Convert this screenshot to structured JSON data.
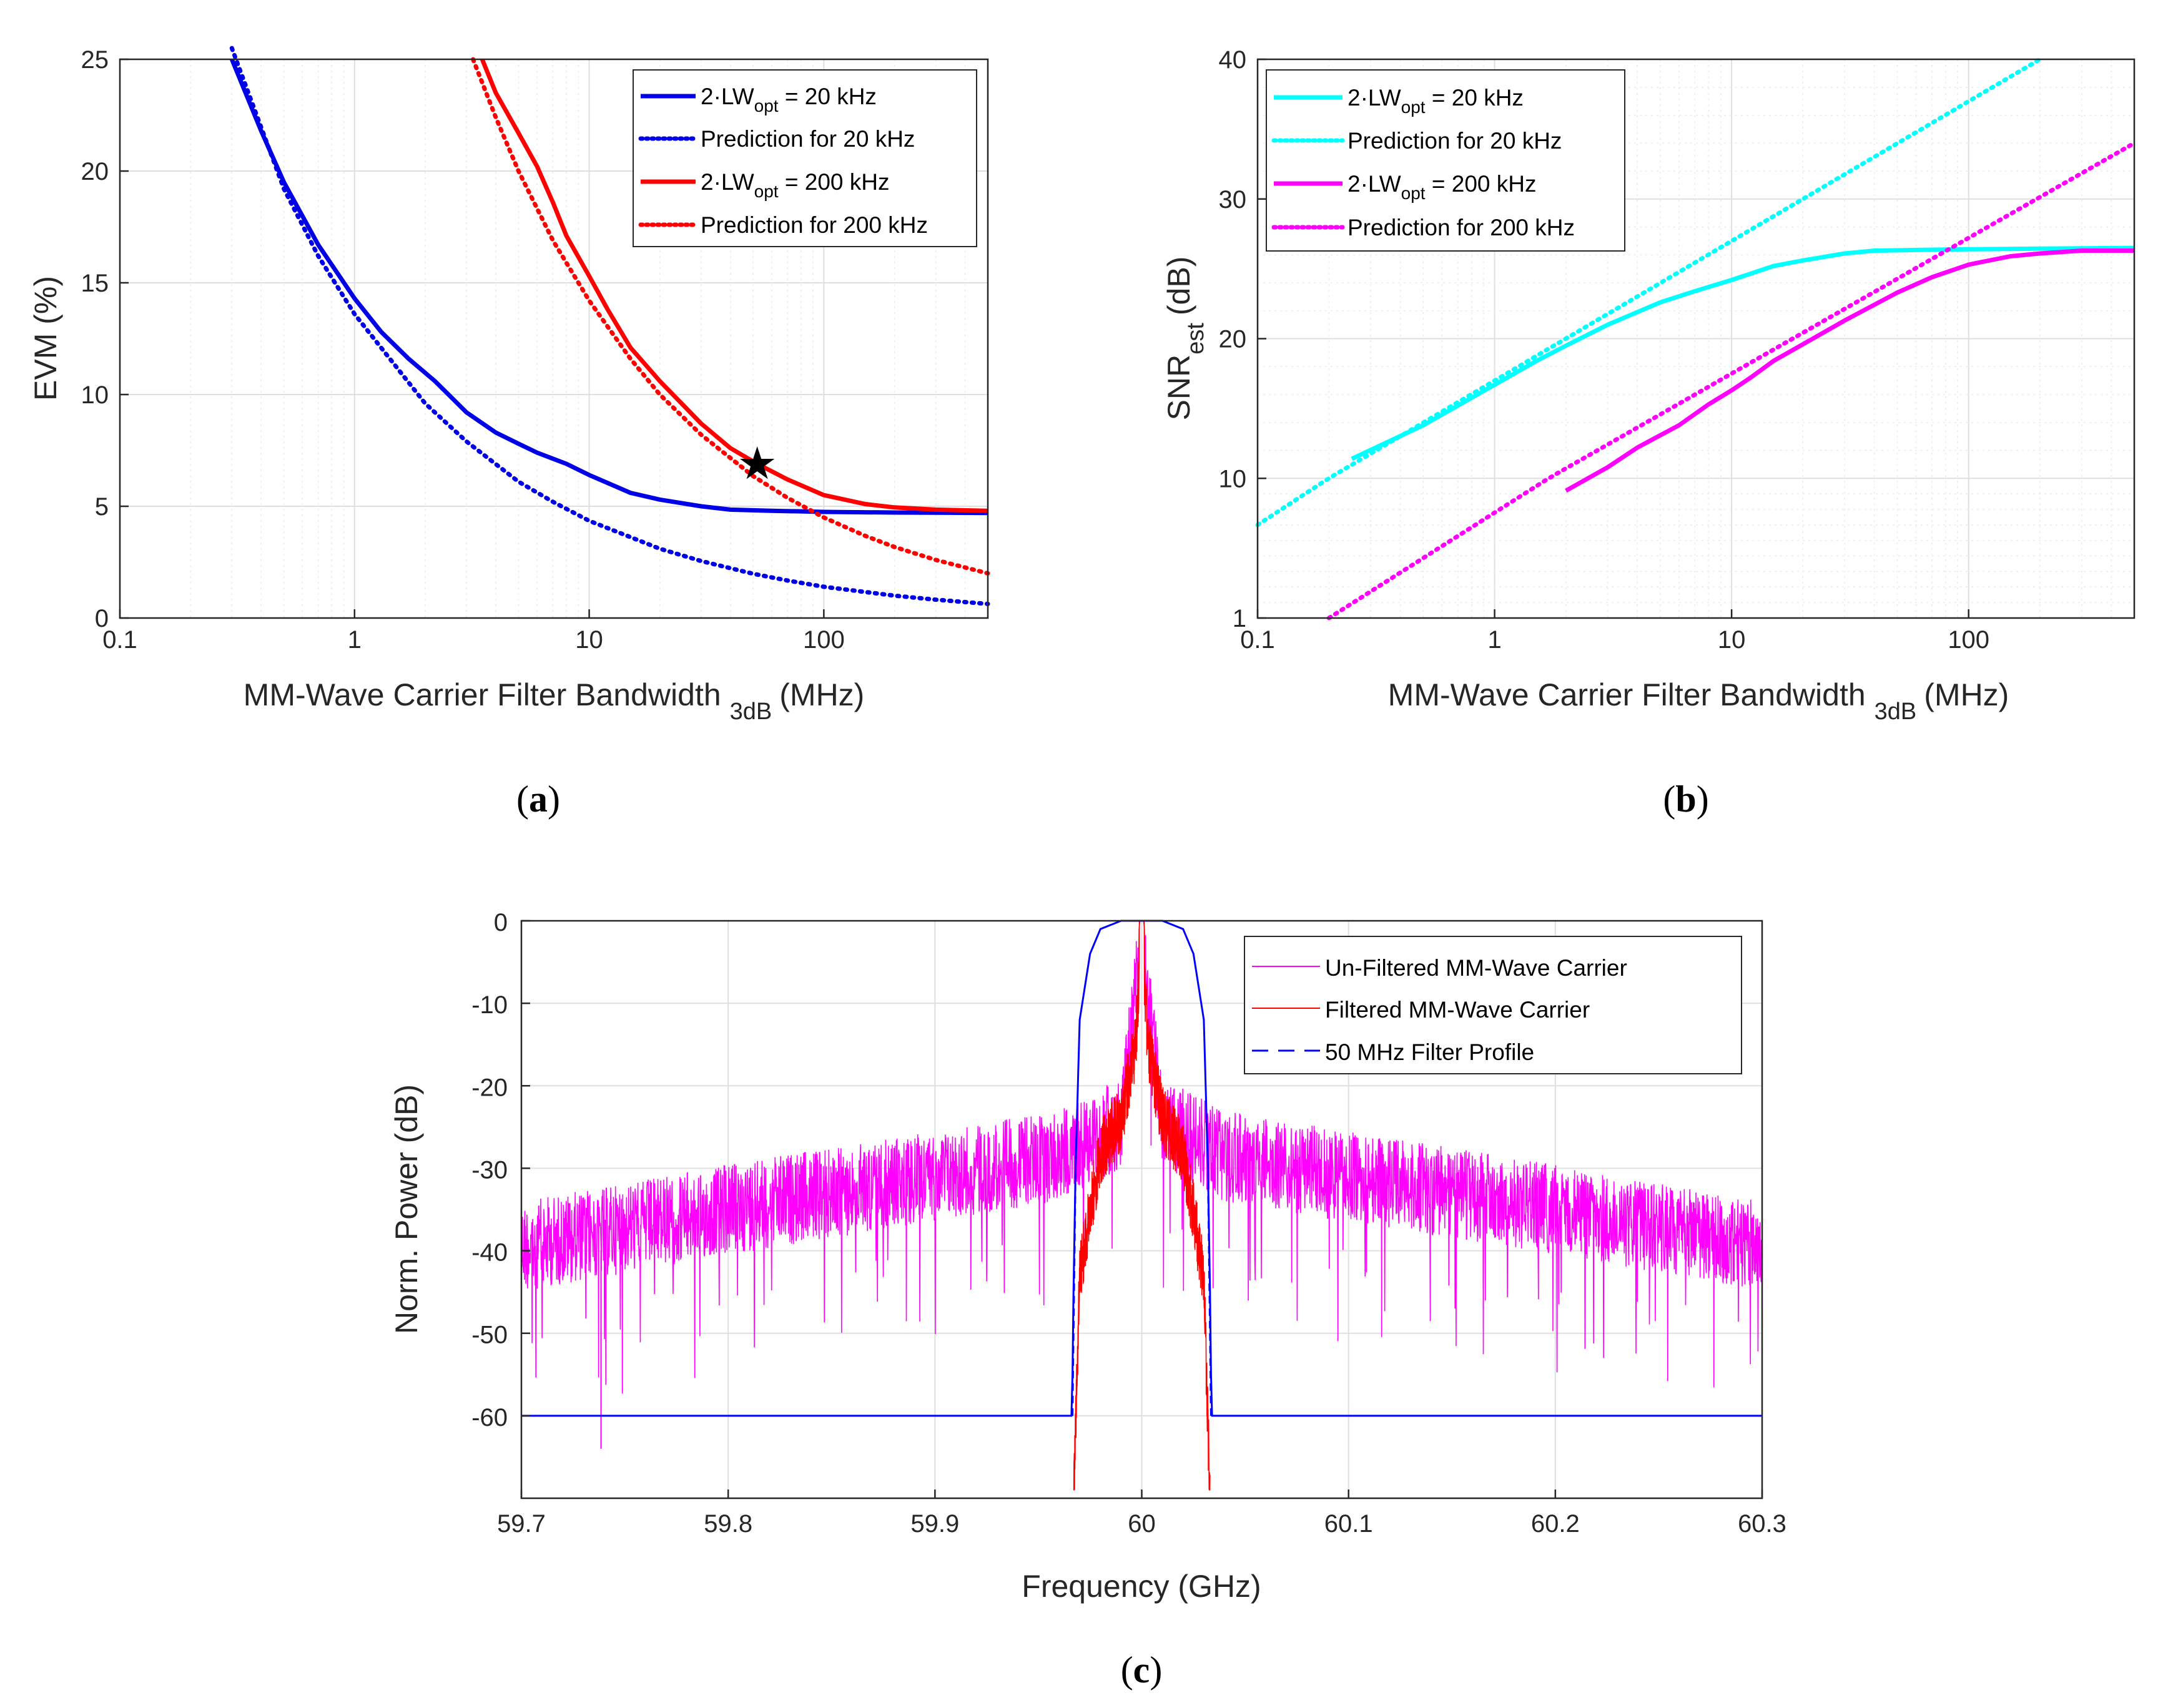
{
  "chart_data": [
    {
      "id": "a",
      "type": "line",
      "caption": "a",
      "xscale": "log",
      "xlim": [
        0.1,
        500
      ],
      "ylim": [
        0,
        25
      ],
      "xticks": [
        "0.1",
        "1",
        "10",
        "100"
      ],
      "yticks": [
        "0",
        "5",
        "10",
        "15",
        "20",
        "25"
      ],
      "xlabel_main": "MM-Wave Carrier Filter Bandwidth",
      "xlabel_sub": "3dB",
      "xlabel_unit": "(MHz)",
      "ylabel": "EVM (%)",
      "legend_position": "top-right",
      "series": [
        {
          "name": "20 kHz",
          "label_pre": "2·LW",
          "label_sub": "opt",
          "label_post": " = 20 kHz",
          "color": "#0000e6",
          "style": "solid",
          "x": [
            0.3,
            0.4,
            0.5,
            0.7,
            1.0,
            1.3,
            1.7,
            2.2,
            3.0,
            4.0,
            5.0,
            6.0,
            8.0,
            10,
            15,
            20,
            30,
            40,
            60,
            100,
            200,
            500
          ],
          "y": [
            25.0,
            21.8,
            19.5,
            16.7,
            14.3,
            12.8,
            11.6,
            10.6,
            9.2,
            8.3,
            7.8,
            7.4,
            6.9,
            6.4,
            5.6,
            5.3,
            5.0,
            4.85,
            4.8,
            4.75,
            4.72,
            4.7
          ]
        },
        {
          "name": "Prediction for 20 kHz",
          "label_pre": "Prediction for 20 kHz",
          "color": "#0000e6",
          "style": "dotted",
          "x": [
            0.3,
            0.5,
            0.7,
            1,
            2,
            3,
            5,
            7,
            10,
            20,
            30,
            50,
            70,
            100,
            200,
            300,
            500
          ],
          "y": [
            25.5,
            19.2,
            16.2,
            13.6,
            9.6,
            7.9,
            6.1,
            5.2,
            4.35,
            3.1,
            2.55,
            1.98,
            1.68,
            1.4,
            1.0,
            0.82,
            0.63
          ]
        },
        {
          "name": "200 kHz",
          "label_pre": "2·LW",
          "label_sub": "opt",
          "label_post": " = 200 kHz",
          "color": "#ff0000",
          "style": "solid",
          "x": [
            3.5,
            4,
            5,
            6,
            7,
            8,
            10,
            12,
            15,
            20,
            30,
            40,
            52,
            70,
            100,
            150,
            200,
            300,
            500
          ],
          "y": [
            25.0,
            23.5,
            21.7,
            20.2,
            18.6,
            17.1,
            15.3,
            13.8,
            12.1,
            10.6,
            8.7,
            7.6,
            6.9,
            6.2,
            5.5,
            5.1,
            4.95,
            4.85,
            4.8
          ]
        },
        {
          "name": "Prediction for 200 kHz",
          "label_pre": "Prediction for 200 kHz",
          "color": "#ff0000",
          "style": "dotted",
          "x": [
            3.2,
            4,
            5,
            7,
            10,
            15,
            20,
            30,
            50,
            70,
            100,
            150,
            200,
            300,
            500
          ],
          "y": [
            25.0,
            22.4,
            20.0,
            16.9,
            14.2,
            11.6,
            10.0,
            8.2,
            6.35,
            5.38,
            4.5,
            3.68,
            3.18,
            2.6,
            2.0
          ]
        }
      ],
      "annotation": {
        "symbol": "★",
        "x": 52,
        "y": 6.9
      }
    },
    {
      "id": "b",
      "type": "line",
      "caption": "b",
      "xscale": "log",
      "xlim": [
        0.1,
        500
      ],
      "ylim_db": [
        1,
        40
      ],
      "xticks": [
        "0.1",
        "1",
        "10",
        "100"
      ],
      "yticks": [
        "1",
        "10",
        "20",
        "30",
        "40"
      ],
      "xlabel_main": "MM-Wave Carrier Filter Bandwidth",
      "xlabel_sub": "3dB",
      "xlabel_unit": "(MHz)",
      "ylabel_main": "SNR",
      "ylabel_sub": "est",
      "ylabel_unit": "(dB)",
      "legend_position": "top-left",
      "series": [
        {
          "name": "20 kHz",
          "label_pre": "2·LW",
          "label_sub": "opt",
          "label_post": "  = 20 kHz",
          "color": "#00ffff",
          "style": "solid",
          "x": [
            0.25,
            0.5,
            1,
            1.5,
            2,
            3,
            5,
            7,
            10,
            15,
            20,
            30,
            40,
            60,
            100,
            200,
            500
          ],
          "y": [
            11.4,
            13.8,
            16.7,
            18.4,
            19.5,
            21.0,
            22.6,
            23.4,
            24.2,
            25.2,
            25.6,
            26.1,
            26.3,
            26.35,
            26.4,
            26.45,
            26.5
          ]
        },
        {
          "name": "Prediction for 20 kHz",
          "label_pre": "Prediction for 20 kHz",
          "color": "#00ffff",
          "style": "dotted",
          "x": [
            0.1,
            200
          ],
          "y": [
            7.0,
            40.0
          ]
        },
        {
          "name": "200 kHz",
          "label_pre": "2·LW",
          "label_sub": "opt",
          "label_post": " = 200 kHz",
          "color": "#ff00ff",
          "style": "solid",
          "x": [
            2,
            3,
            4,
            6,
            8,
            10,
            12,
            15,
            20,
            30,
            50,
            70,
            100,
            150,
            200,
            300,
            500
          ],
          "y": [
            9.2,
            10.8,
            12.2,
            13.8,
            15.3,
            16.3,
            17.2,
            18.4,
            19.6,
            21.3,
            23.3,
            24.4,
            25.3,
            25.9,
            26.1,
            26.3,
            26.3
          ]
        },
        {
          "name": "Prediction for 200 kHz",
          "label_pre": "Prediction for 200 kHz",
          "color": "#ff00ff",
          "style": "dotted",
          "x": [
            0.2,
            500
          ],
          "y": [
            1.0,
            34.0
          ]
        }
      ]
    },
    {
      "id": "c",
      "type": "line",
      "caption": "c",
      "xlim": [
        59.7,
        60.3
      ],
      "ylim": [
        -70,
        0
      ],
      "xticks": [
        "59.7",
        "59.8",
        "59.9",
        "60",
        "60.1",
        "60.2",
        "60.3"
      ],
      "yticks": [
        "0",
        "-10",
        "-20",
        "-30",
        "-40",
        "-50",
        "-60"
      ],
      "xlabel": "Frequency (GHz)",
      "ylabel": "Norm. Power (dB)",
      "legend_position": "top-right",
      "series": [
        {
          "name": "Un-Filtered MM-Wave Carrier",
          "color": "#ff00ff",
          "style": "solid",
          "envelope_x": [
            59.7,
            59.8,
            59.9,
            59.96,
            59.99,
            60.0,
            60.01,
            60.04,
            60.1,
            60.2,
            60.3
          ],
          "envelope_y": [
            -38,
            -33.5,
            -29.5,
            -27,
            -23,
            0,
            -23,
            -27,
            -29.5,
            -33.5,
            -38
          ]
        },
        {
          "name": "Filtered MM-Wave Carrier",
          "color": "#ff0000",
          "style": "solid",
          "envelope_x": [
            59.967,
            59.97,
            59.98,
            59.99,
            59.997,
            60.0,
            60.003,
            60.01,
            60.02,
            60.03,
            60.033
          ],
          "envelope_y": [
            -69,
            -42,
            -27,
            -23,
            -14,
            0,
            -14,
            -23,
            -27,
            -42,
            -69
          ]
        },
        {
          "name": "50 MHz Filter Profile",
          "color": "#0000ff",
          "style": "solid",
          "x": [
            59.7,
            59.966,
            59.9665,
            59.967,
            59.968,
            59.97,
            59.975,
            59.98,
            59.99,
            60.01,
            60.02,
            60.025,
            60.03,
            60.032,
            60.033,
            60.0335,
            60.034,
            60.3
          ],
          "y": [
            -60,
            -60,
            -55,
            -45,
            -30,
            -12,
            -4,
            -1,
            0,
            0,
            -1,
            -4,
            -12,
            -30,
            -45,
            -55,
            -60,
            -60
          ]
        }
      ]
    }
  ]
}
